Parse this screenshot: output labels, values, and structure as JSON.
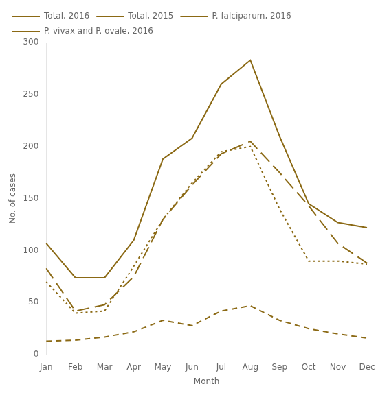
{
  "chart_data": {
    "type": "line",
    "xlabel": "Month",
    "ylabel": "No. of cases",
    "categories": [
      "Jan",
      "Feb",
      "Mar",
      "Apr",
      "May",
      "Jun",
      "Jul",
      "Aug",
      "Sep",
      "Oct",
      "Nov",
      "Dec"
    ],
    "series": [
      {
        "name": "Total, 2016",
        "color": "#8B6914",
        "line_style": "solid",
        "values": [
          107,
          74,
          74,
          110,
          188,
          208,
          260,
          283,
          210,
          145,
          127,
          122
        ]
      },
      {
        "name": "Total, 2015",
        "color": "#8B6914",
        "line_style": "dashed",
        "values": [
          83,
          42,
          48,
          75,
          130,
          163,
          193,
          205,
          175,
          143,
          107,
          88
        ]
      },
      {
        "name": "P. falciparum, 2016",
        "color": "#8B6914",
        "line_style": "dotted",
        "values": [
          70,
          40,
          42,
          85,
          130,
          165,
          195,
          200,
          140,
          90,
          90,
          87
        ]
      },
      {
        "name": "P. vivax and P. ovale, 2016",
        "color": "#8B6914",
        "line_style": "shortdash",
        "values": [
          13,
          14,
          17,
          22,
          33,
          28,
          42,
          47,
          33,
          25,
          20,
          16
        ]
      }
    ],
    "ylim": [
      0,
      300
    ],
    "yticks": [
      0,
      50,
      100,
      150,
      200,
      250,
      300
    ],
    "grid": false,
    "legend": "upper left"
  }
}
